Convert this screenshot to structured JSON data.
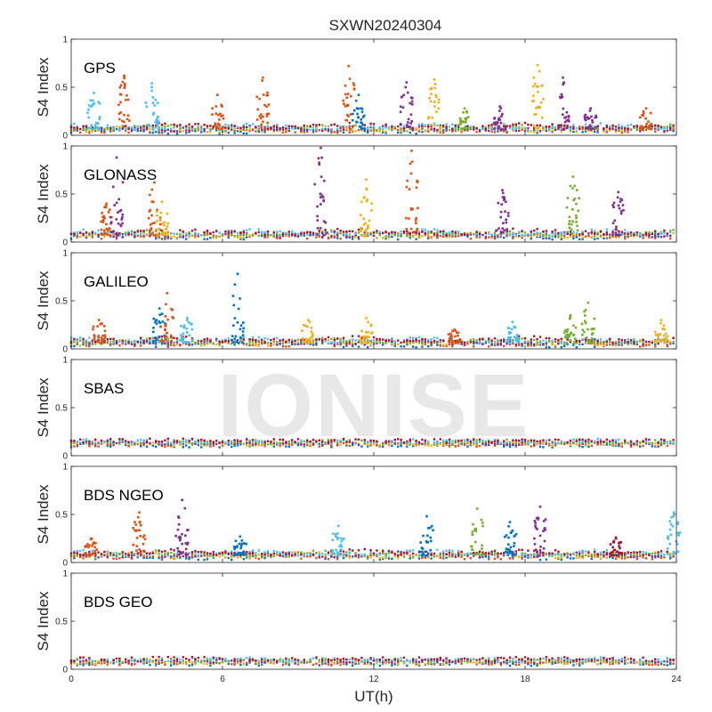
{
  "chart_data": {
    "type": "scatter",
    "title": "SXWN20240304",
    "xlabel": "UT(h)",
    "ylabel": "S4 Index",
    "xlim": [
      0,
      24
    ],
    "ylim": [
      0,
      1
    ],
    "x_ticks": [
      "0",
      "6",
      "12",
      "18",
      "24"
    ],
    "y_ticks": [
      "0",
      "0.5",
      "1"
    ],
    "watermark": "IONISE",
    "grid": false,
    "series_colors": [
      "#0072BD",
      "#D95319",
      "#EDB120",
      "#7E2F8E",
      "#77AC30",
      "#4DBEEE",
      "#A2142F"
    ],
    "panels": [
      {
        "name": "GPS",
        "baseline": 0.06,
        "spikes": [
          {
            "x": 0.9,
            "peak": 0.44,
            "series": 5
          },
          {
            "x": 2.1,
            "peak": 0.62,
            "series": 1
          },
          {
            "x": 3.2,
            "peak": 0.54,
            "series": 5
          },
          {
            "x": 5.8,
            "peak": 0.42,
            "series": 1
          },
          {
            "x": 7.6,
            "peak": 0.6,
            "series": 1
          },
          {
            "x": 11.0,
            "peak": 0.72,
            "series": 1
          },
          {
            "x": 11.4,
            "peak": 0.42,
            "series": 0
          },
          {
            "x": 13.3,
            "peak": 0.55,
            "series": 3
          },
          {
            "x": 14.4,
            "peak": 0.58,
            "series": 2
          },
          {
            "x": 15.6,
            "peak": 0.28,
            "series": 4
          },
          {
            "x": 17.0,
            "peak": 0.3,
            "series": 3
          },
          {
            "x": 18.5,
            "peak": 0.73,
            "series": 2
          },
          {
            "x": 19.5,
            "peak": 0.6,
            "series": 3
          },
          {
            "x": 20.6,
            "peak": 0.28,
            "series": 3
          },
          {
            "x": 22.8,
            "peak": 0.28,
            "series": 1
          }
        ]
      },
      {
        "name": "GLONASS",
        "baseline": 0.07,
        "spikes": [
          {
            "x": 1.4,
            "peak": 0.4,
            "series": 1
          },
          {
            "x": 1.8,
            "peak": 0.88,
            "series": 3
          },
          {
            "x": 3.3,
            "peak": 0.62,
            "series": 1
          },
          {
            "x": 3.6,
            "peak": 0.42,
            "series": 2
          },
          {
            "x": 9.9,
            "peak": 0.98,
            "series": 3
          },
          {
            "x": 11.7,
            "peak": 0.65,
            "series": 2
          },
          {
            "x": 13.5,
            "peak": 0.95,
            "series": 1
          },
          {
            "x": 17.1,
            "peak": 0.54,
            "series": 3
          },
          {
            "x": 19.9,
            "peak": 0.68,
            "series": 4
          },
          {
            "x": 21.7,
            "peak": 0.52,
            "series": 3
          }
        ]
      },
      {
        "name": "GALILEO",
        "baseline": 0.06,
        "spikes": [
          {
            "x": 1.1,
            "peak": 0.3,
            "series": 1
          },
          {
            "x": 3.5,
            "peak": 0.42,
            "series": 0
          },
          {
            "x": 3.8,
            "peak": 0.58,
            "series": 1
          },
          {
            "x": 4.6,
            "peak": 0.32,
            "series": 5
          },
          {
            "x": 6.6,
            "peak": 0.78,
            "series": 0
          },
          {
            "x": 9.4,
            "peak": 0.3,
            "series": 2
          },
          {
            "x": 11.7,
            "peak": 0.32,
            "series": 2
          },
          {
            "x": 15.2,
            "peak": 0.2,
            "series": 1
          },
          {
            "x": 17.5,
            "peak": 0.28,
            "series": 5
          },
          {
            "x": 19.8,
            "peak": 0.35,
            "series": 4
          },
          {
            "x": 20.5,
            "peak": 0.48,
            "series": 4
          },
          {
            "x": 23.4,
            "peak": 0.3,
            "series": 2
          }
        ]
      },
      {
        "name": "SBAS",
        "baseline": 0.13,
        "spikes": []
      },
      {
        "name": "BDS NGEO",
        "baseline": 0.07,
        "spikes": [
          {
            "x": 0.8,
            "peak": 0.25,
            "series": 1
          },
          {
            "x": 2.7,
            "peak": 0.52,
            "series": 1
          },
          {
            "x": 4.4,
            "peak": 0.65,
            "series": 3
          },
          {
            "x": 6.7,
            "peak": 0.27,
            "series": 0
          },
          {
            "x": 10.6,
            "peak": 0.38,
            "series": 5
          },
          {
            "x": 14.1,
            "peak": 0.48,
            "series": 0
          },
          {
            "x": 16.1,
            "peak": 0.56,
            "series": 4
          },
          {
            "x": 17.4,
            "peak": 0.42,
            "series": 0
          },
          {
            "x": 18.6,
            "peak": 0.58,
            "series": 3
          },
          {
            "x": 21.6,
            "peak": 0.26,
            "series": 6
          },
          {
            "x": 23.9,
            "peak": 0.52,
            "series": 5
          }
        ]
      },
      {
        "name": "BDS GEO",
        "baseline": 0.08,
        "spikes": []
      }
    ]
  }
}
